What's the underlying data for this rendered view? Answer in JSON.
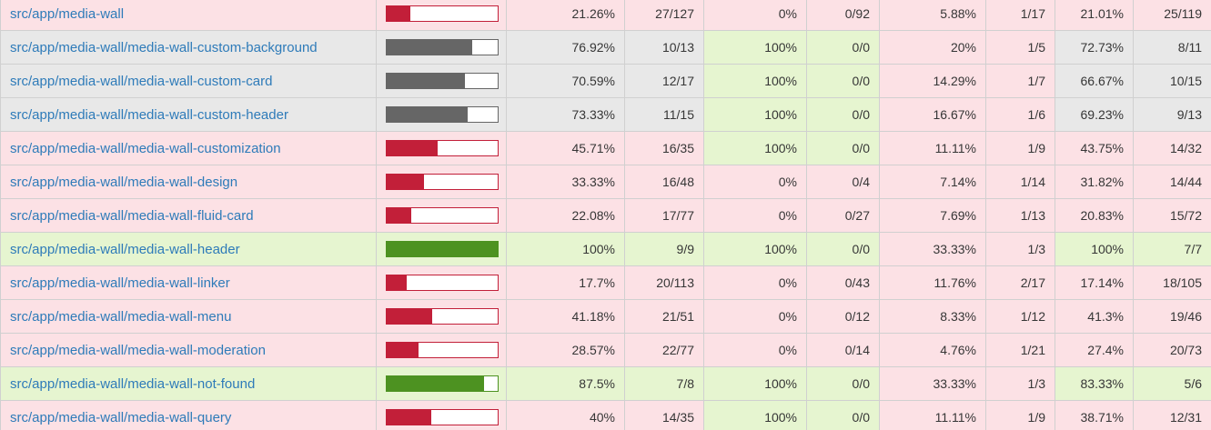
{
  "colors": {
    "low_bg": "#fce1e5",
    "medium_bg": "#e8e8e8",
    "high_bg": "#e6f5d0",
    "low_bar": "#c21f39",
    "medium_bar": "#666666",
    "high_bar": "#4d9221",
    "link": "#2e7bb9",
    "text": "#363636",
    "cell_border": "#d0d0d0"
  },
  "table": {
    "metric_order": [
      "statements",
      "branches",
      "functions",
      "lines"
    ],
    "rows": [
      {
        "file": "src/app/media-wall",
        "level": "low",
        "bar_pct": 21.26,
        "statements": {
          "pct": "21.26%",
          "raw": "27/127",
          "level": "low"
        },
        "branches": {
          "pct": "0%",
          "raw": "0/92",
          "level": "low"
        },
        "functions": {
          "pct": "5.88%",
          "raw": "1/17",
          "level": "low"
        },
        "lines": {
          "pct": "21.01%",
          "raw": "25/119",
          "level": "low"
        }
      },
      {
        "file": "src/app/media-wall/media-wall-custom-background",
        "level": "medium",
        "bar_pct": 76.92,
        "statements": {
          "pct": "76.92%",
          "raw": "10/13",
          "level": "medium"
        },
        "branches": {
          "pct": "100%",
          "raw": "0/0",
          "level": "high"
        },
        "functions": {
          "pct": "20%",
          "raw": "1/5",
          "level": "low"
        },
        "lines": {
          "pct": "72.73%",
          "raw": "8/11",
          "level": "medium"
        }
      },
      {
        "file": "src/app/media-wall/media-wall-custom-card",
        "level": "medium",
        "bar_pct": 70.59,
        "statements": {
          "pct": "70.59%",
          "raw": "12/17",
          "level": "medium"
        },
        "branches": {
          "pct": "100%",
          "raw": "0/0",
          "level": "high"
        },
        "functions": {
          "pct": "14.29%",
          "raw": "1/7",
          "level": "low"
        },
        "lines": {
          "pct": "66.67%",
          "raw": "10/15",
          "level": "medium"
        }
      },
      {
        "file": "src/app/media-wall/media-wall-custom-header",
        "level": "medium",
        "bar_pct": 73.33,
        "statements": {
          "pct": "73.33%",
          "raw": "11/15",
          "level": "medium"
        },
        "branches": {
          "pct": "100%",
          "raw": "0/0",
          "level": "high"
        },
        "functions": {
          "pct": "16.67%",
          "raw": "1/6",
          "level": "low"
        },
        "lines": {
          "pct": "69.23%",
          "raw": "9/13",
          "level": "medium"
        }
      },
      {
        "file": "src/app/media-wall/media-wall-customization",
        "level": "low",
        "bar_pct": 45.71,
        "statements": {
          "pct": "45.71%",
          "raw": "16/35",
          "level": "low"
        },
        "branches": {
          "pct": "100%",
          "raw": "0/0",
          "level": "high"
        },
        "functions": {
          "pct": "11.11%",
          "raw": "1/9",
          "level": "low"
        },
        "lines": {
          "pct": "43.75%",
          "raw": "14/32",
          "level": "low"
        }
      },
      {
        "file": "src/app/media-wall/media-wall-design",
        "level": "low",
        "bar_pct": 33.33,
        "statements": {
          "pct": "33.33%",
          "raw": "16/48",
          "level": "low"
        },
        "branches": {
          "pct": "0%",
          "raw": "0/4",
          "level": "low"
        },
        "functions": {
          "pct": "7.14%",
          "raw": "1/14",
          "level": "low"
        },
        "lines": {
          "pct": "31.82%",
          "raw": "14/44",
          "level": "low"
        }
      },
      {
        "file": "src/app/media-wall/media-wall-fluid-card",
        "level": "low",
        "bar_pct": 22.08,
        "statements": {
          "pct": "22.08%",
          "raw": "17/77",
          "level": "low"
        },
        "branches": {
          "pct": "0%",
          "raw": "0/27",
          "level": "low"
        },
        "functions": {
          "pct": "7.69%",
          "raw": "1/13",
          "level": "low"
        },
        "lines": {
          "pct": "20.83%",
          "raw": "15/72",
          "level": "low"
        }
      },
      {
        "file": "src/app/media-wall/media-wall-header",
        "level": "high",
        "bar_pct": 100,
        "statements": {
          "pct": "100%",
          "raw": "9/9",
          "level": "high"
        },
        "branches": {
          "pct": "100%",
          "raw": "0/0",
          "level": "high"
        },
        "functions": {
          "pct": "33.33%",
          "raw": "1/3",
          "level": "low"
        },
        "lines": {
          "pct": "100%",
          "raw": "7/7",
          "level": "high"
        }
      },
      {
        "file": "src/app/media-wall/media-wall-linker",
        "level": "low",
        "bar_pct": 17.7,
        "statements": {
          "pct": "17.7%",
          "raw": "20/113",
          "level": "low"
        },
        "branches": {
          "pct": "0%",
          "raw": "0/43",
          "level": "low"
        },
        "functions": {
          "pct": "11.76%",
          "raw": "2/17",
          "level": "low"
        },
        "lines": {
          "pct": "17.14%",
          "raw": "18/105",
          "level": "low"
        }
      },
      {
        "file": "src/app/media-wall/media-wall-menu",
        "level": "low",
        "bar_pct": 41.18,
        "statements": {
          "pct": "41.18%",
          "raw": "21/51",
          "level": "low"
        },
        "branches": {
          "pct": "0%",
          "raw": "0/12",
          "level": "low"
        },
        "functions": {
          "pct": "8.33%",
          "raw": "1/12",
          "level": "low"
        },
        "lines": {
          "pct": "41.3%",
          "raw": "19/46",
          "level": "low"
        }
      },
      {
        "file": "src/app/media-wall/media-wall-moderation",
        "level": "low",
        "bar_pct": 28.57,
        "statements": {
          "pct": "28.57%",
          "raw": "22/77",
          "level": "low"
        },
        "branches": {
          "pct": "0%",
          "raw": "0/14",
          "level": "low"
        },
        "functions": {
          "pct": "4.76%",
          "raw": "1/21",
          "level": "low"
        },
        "lines": {
          "pct": "27.4%",
          "raw": "20/73",
          "level": "low"
        }
      },
      {
        "file": "src/app/media-wall/media-wall-not-found",
        "level": "high",
        "bar_pct": 87.5,
        "statements": {
          "pct": "87.5%",
          "raw": "7/8",
          "level": "high"
        },
        "branches": {
          "pct": "100%",
          "raw": "0/0",
          "level": "high"
        },
        "functions": {
          "pct": "33.33%",
          "raw": "1/3",
          "level": "low"
        },
        "lines": {
          "pct": "83.33%",
          "raw": "5/6",
          "level": "high"
        }
      },
      {
        "file": "src/app/media-wall/media-wall-query",
        "level": "low",
        "bar_pct": 40,
        "statements": {
          "pct": "40%",
          "raw": "14/35",
          "level": "low"
        },
        "branches": {
          "pct": "100%",
          "raw": "0/0",
          "level": "high"
        },
        "functions": {
          "pct": "11.11%",
          "raw": "1/9",
          "level": "low"
        },
        "lines": {
          "pct": "38.71%",
          "raw": "12/31",
          "level": "low"
        }
      }
    ]
  }
}
